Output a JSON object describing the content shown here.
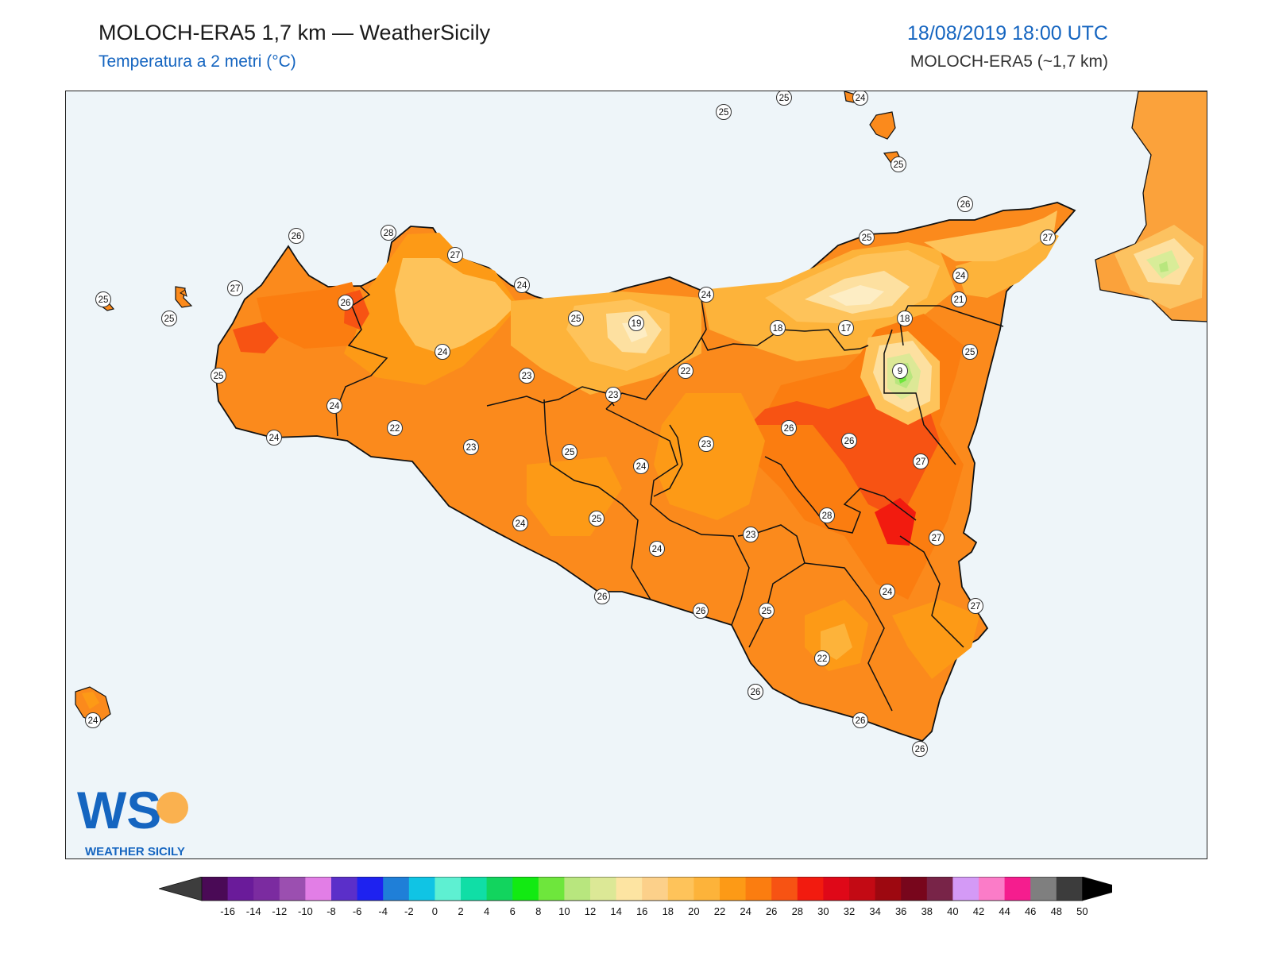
{
  "header": {
    "title": "MOLOCH-ERA5 1,7 km — WeatherSicily",
    "subtitle": "Temperatura a 2 metri (°C)",
    "datetime": "18/08/2019 18:00 UTC",
    "model": "MOLOCH-ERA5 (~1,7 km)"
  },
  "map": {
    "region": "Sicily",
    "sea_color": "#eef5f9",
    "labels": [
      "25",
      "25",
      "24",
      "25",
      "26",
      "26",
      "27",
      "28",
      "27",
      "24",
      "26",
      "27",
      "25",
      "25",
      "25",
      "24",
      "25",
      "24",
      "21",
      "18",
      "17",
      "25",
      "18",
      "24",
      "25",
      "19",
      "24",
      "23",
      "22",
      "23",
      "9",
      "22",
      "24",
      "23",
      "25",
      "26",
      "23",
      "26",
      "24",
      "27",
      "28",
      "24",
      "25",
      "23",
      "27",
      "24",
      "26",
      "26",
      "25",
      "24",
      "27",
      "22",
      "26",
      "26",
      "26",
      "26",
      "24"
    ]
  },
  "legend": {
    "ticks": [
      "-16",
      "-14",
      "-12",
      "-10",
      "-8",
      "-6",
      "-4",
      "-2",
      "0",
      "2",
      "4",
      "6",
      "8",
      "10",
      "12",
      "14",
      "16",
      "18",
      "20",
      "22",
      "24",
      "26",
      "28",
      "30",
      "32",
      "34",
      "36",
      "38",
      "40",
      "42",
      "44",
      "46",
      "48",
      "50"
    ],
    "colors": [
      "#4a0a56",
      "#6a1b9a",
      "#7b2ba0",
      "#9b4fb0",
      "#e27ee6",
      "#5b2fc9",
      "#1e22f0",
      "#1f7fd8",
      "#10c4e4",
      "#5ef0d2",
      "#10dea6",
      "#12d45e",
      "#12ea12",
      "#6ee63c",
      "#b8e67e",
      "#dce896",
      "#fde4a2",
      "#fcd08a",
      "#fec35a",
      "#fdb33a",
      "#fd9a16",
      "#fb7d10",
      "#f75313",
      "#f21b0f",
      "#df0818",
      "#c30a14",
      "#9d0810",
      "#78061c",
      "#782448",
      "#d49af6",
      "#fb7cc8",
      "#f51d8e",
      "#7f7f7f",
      "#3c3c3c"
    ]
  },
  "logo": {
    "initials": "WS",
    "name": "WEATHER SICILY"
  }
}
